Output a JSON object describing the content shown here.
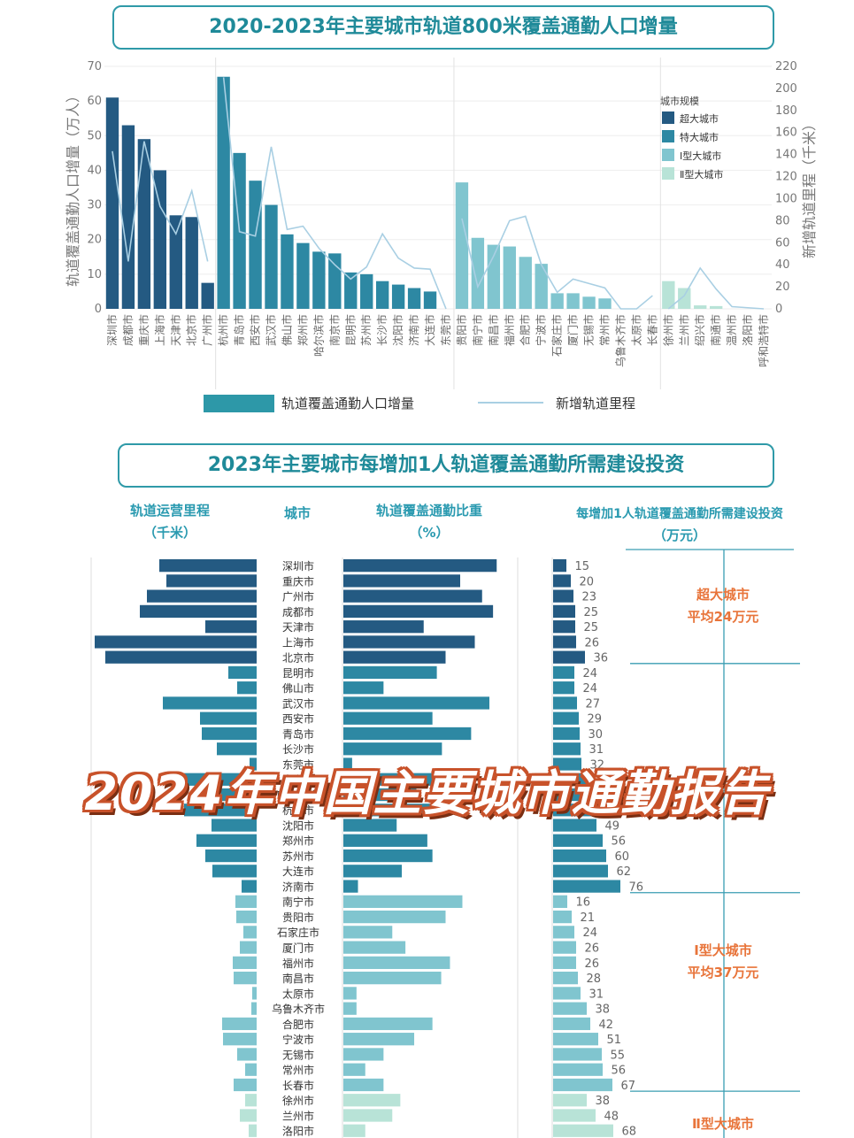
{
  "chart_data": [
    {
      "type": "bar",
      "title": "2020-2023年主要城市轨道800米覆盖通勤人口增量",
      "ylabel": "轨道覆盖通勤人口增量（万人）",
      "y2label": "新增轨道里程（千米）",
      "ylim": [
        0,
        70
      ],
      "y2lim": [
        0,
        220
      ],
      "yticks": [
        0,
        10,
        20,
        30,
        40,
        50,
        60,
        70
      ],
      "y2ticks": [
        0,
        20,
        40,
        60,
        80,
        100,
        120,
        140,
        160,
        180,
        200,
        220
      ],
      "legend_title": "城市规模",
      "groups": [
        {
          "name": "超大城市",
          "color": "#245a82"
        },
        {
          "name": "特大城市",
          "color": "#2d88a3"
        },
        {
          "name": "Ⅰ型大城市",
          "color": "#80c5cf"
        },
        {
          "name": "Ⅱ型大城市",
          "color": "#b8e3d7"
        }
      ],
      "series_labels": {
        "bars": "轨道覆盖通勤人口增量",
        "line": "新增轨道里程"
      },
      "grid": true,
      "legend_position": "top-right",
      "cities": [
        {
          "name": "深圳市",
          "group": 0,
          "pop": 61,
          "km": 143
        },
        {
          "name": "成都市",
          "group": 0,
          "pop": 53,
          "km": 43
        },
        {
          "name": "重庆市",
          "group": 0,
          "pop": 49,
          "km": 152
        },
        {
          "name": "上海市",
          "group": 0,
          "pop": 40,
          "km": 93
        },
        {
          "name": "天津市",
          "group": 0,
          "pop": 27,
          "km": 68
        },
        {
          "name": "北京市",
          "group": 0,
          "pop": 26.5,
          "km": 107
        },
        {
          "name": "广州市",
          "group": 0,
          "pop": 7.5,
          "km": 43
        },
        {
          "name": "杭州市",
          "group": 1,
          "pop": 67,
          "km": 210
        },
        {
          "name": "青岛市",
          "group": 1,
          "pop": 45,
          "km": 70
        },
        {
          "name": "西安市",
          "group": 1,
          "pop": 37,
          "km": 66
        },
        {
          "name": "武汉市",
          "group": 1,
          "pop": 30,
          "km": 147
        },
        {
          "name": "佛山市",
          "group": 1,
          "pop": 21.5,
          "km": 72
        },
        {
          "name": "郑州市",
          "group": 1,
          "pop": 19,
          "km": 75
        },
        {
          "name": "哈尔滨市",
          "group": 1,
          "pop": 16.5,
          "km": 55
        },
        {
          "name": "南京市",
          "group": 1,
          "pop": 16,
          "km": 40
        },
        {
          "name": "昆明市",
          "group": 1,
          "pop": 10.5,
          "km": 27
        },
        {
          "name": "苏州市",
          "group": 1,
          "pop": 10,
          "km": 38
        },
        {
          "name": "长沙市",
          "group": 1,
          "pop": 8,
          "km": 68
        },
        {
          "name": "沈阳市",
          "group": 1,
          "pop": 7,
          "km": 46
        },
        {
          "name": "济南市",
          "group": 1,
          "pop": 6,
          "km": 37
        },
        {
          "name": "大连市",
          "group": 1,
          "pop": 5,
          "km": 36
        },
        {
          "name": "东莞市",
          "group": 1,
          "pop": 0,
          "km": 0
        },
        {
          "name": "贵阳市",
          "group": 2,
          "pop": 36.5,
          "km": 82
        },
        {
          "name": "南宁市",
          "group": 2,
          "pop": 20.5,
          "km": 20
        },
        {
          "name": "南昌市",
          "group": 2,
          "pop": 18.5,
          "km": 48
        },
        {
          "name": "福州市",
          "group": 2,
          "pop": 18,
          "km": 80
        },
        {
          "name": "合肥市",
          "group": 2,
          "pop": 15,
          "km": 84
        },
        {
          "name": "宁波市",
          "group": 2,
          "pop": 13,
          "km": 40
        },
        {
          "name": "石家庄市",
          "group": 2,
          "pop": 4.5,
          "km": 15
        },
        {
          "name": "厦门市",
          "group": 2,
          "pop": 4.5,
          "km": 27
        },
        {
          "name": "无锡市",
          "group": 2,
          "pop": 3.5,
          "km": 23
        },
        {
          "name": "常州市",
          "group": 2,
          "pop": 3,
          "km": 19
        },
        {
          "name": "乌鲁木齐市",
          "group": 2,
          "pop": 0,
          "km": 0
        },
        {
          "name": "太原市",
          "group": 2,
          "pop": 0,
          "km": 0
        },
        {
          "name": "长春市",
          "group": 2,
          "pop": 0,
          "km": 12
        },
        {
          "name": "徐州市",
          "group": 3,
          "pop": 8,
          "km": 0
        },
        {
          "name": "兰州市",
          "group": 3,
          "pop": 6,
          "km": 12
        },
        {
          "name": "绍兴市",
          "group": 3,
          "pop": 1,
          "km": 37
        },
        {
          "name": "南通市",
          "group": 3,
          "pop": 0.8,
          "km": 18
        },
        {
          "name": "温州市",
          "group": 3,
          "pop": 0,
          "km": 2
        },
        {
          "name": "洛阳市",
          "group": 3,
          "pop": 0,
          "km": 1
        },
        {
          "name": "呼和浩特市",
          "group": 3,
          "pop": 0,
          "km": 0
        }
      ]
    },
    {
      "type": "bar",
      "title": "2023年主要城市每增加1人轨道覆盖通勤所需建设投资",
      "columns": {
        "mileage": [
          "轨道运营里程",
          "（千米）"
        ],
        "city": "城市",
        "ratio": [
          "轨道覆盖通勤比重",
          "（%）"
        ],
        "invest": [
          "每增加1人轨道覆盖通勤所需建设投资",
          "（万元）"
        ]
      },
      "group_labels": [
        {
          "name": "超大城市",
          "avg": "平均24万元"
        },
        {
          "name": "特大城市",
          "avg": ""
        },
        {
          "name": "Ⅰ型大城市",
          "avg": "平均37万元"
        },
        {
          "name": "Ⅱ型大城市",
          "avg": ""
        }
      ],
      "rows": [
        {
          "city": "深圳市",
          "group": 0,
          "mileage": 110,
          "ratio": 21,
          "invest": 15
        },
        {
          "city": "重庆市",
          "group": 0,
          "mileage": 102,
          "ratio": 16,
          "invest": 20
        },
        {
          "city": "广州市",
          "group": 0,
          "mileage": 124,
          "ratio": 19,
          "invest": 23
        },
        {
          "city": "成都市",
          "group": 0,
          "mileage": 132,
          "ratio": 20.5,
          "invest": 25
        },
        {
          "city": "天津市",
          "group": 0,
          "mileage": 58,
          "ratio": 11,
          "invest": 25
        },
        {
          "city": "上海市",
          "group": 0,
          "mileage": 183,
          "ratio": 18,
          "invest": 26
        },
        {
          "city": "北京市",
          "group": 0,
          "mileage": 171,
          "ratio": 14,
          "invest": 36
        },
        {
          "city": "昆明市",
          "group": 1,
          "mileage": 32,
          "ratio": 12.8,
          "invest": 24
        },
        {
          "city": "佛山市",
          "group": 1,
          "mileage": 22,
          "ratio": 5.5,
          "invest": 24
        },
        {
          "city": "武汉市",
          "group": 1,
          "mileage": 106,
          "ratio": 20,
          "invest": 27
        },
        {
          "city": "西安市",
          "group": 1,
          "mileage": 64,
          "ratio": 12.2,
          "invest": 29
        },
        {
          "city": "青岛市",
          "group": 1,
          "mileage": 62,
          "ratio": 17.5,
          "invest": 30
        },
        {
          "city": "长沙市",
          "group": 1,
          "mileage": 45,
          "ratio": 13.5,
          "invest": 31
        },
        {
          "city": "东莞市",
          "group": 1,
          "mileage": 8,
          "ratio": 1.2,
          "invest": 32
        },
        {
          "city": "南京市",
          "group": 1,
          "mileage": 88,
          "ratio": 14.5,
          "invest": 39
        },
        {
          "city": "哈尔滨市",
          "group": 1,
          "mileage": 40,
          "ratio": 10,
          "invest": 44
        },
        {
          "city": "杭州市",
          "group": 1,
          "mileage": 82,
          "ratio": 13,
          "invest": 47
        },
        {
          "city": "沈阳市",
          "group": 1,
          "mileage": 51,
          "ratio": 7.3,
          "invest": 49
        },
        {
          "city": "郑州市",
          "group": 1,
          "mileage": 68,
          "ratio": 11.5,
          "invest": 56
        },
        {
          "city": "苏州市",
          "group": 1,
          "mileage": 58,
          "ratio": 12.2,
          "invest": 60
        },
        {
          "city": "大连市",
          "group": 1,
          "mileage": 50,
          "ratio": 8,
          "invest": 62
        },
        {
          "city": "济南市",
          "group": 1,
          "mileage": 17,
          "ratio": 2,
          "invest": 76
        },
        {
          "city": "南宁市",
          "group": 2,
          "mileage": 24,
          "ratio": 16.3,
          "invest": 16
        },
        {
          "city": "贵阳市",
          "group": 2,
          "mileage": 23,
          "ratio": 14,
          "invest": 21
        },
        {
          "city": "石家庄市",
          "group": 2,
          "mileage": 15,
          "ratio": 6.7,
          "invest": 24
        },
        {
          "city": "厦门市",
          "group": 2,
          "mileage": 19,
          "ratio": 8.5,
          "invest": 26
        },
        {
          "city": "福州市",
          "group": 2,
          "mileage": 27,
          "ratio": 14.6,
          "invest": 26
        },
        {
          "city": "南昌市",
          "group": 2,
          "mileage": 26,
          "ratio": 13.4,
          "invest": 28
        },
        {
          "city": "太原市",
          "group": 2,
          "mileage": 5,
          "ratio": 1.8,
          "invest": 31
        },
        {
          "city": "乌鲁木齐市",
          "group": 2,
          "mileage": 6,
          "ratio": 1.8,
          "invest": 38
        },
        {
          "city": "合肥市",
          "group": 2,
          "mileage": 39,
          "ratio": 12.2,
          "invest": 42
        },
        {
          "city": "宁波市",
          "group": 2,
          "mileage": 38,
          "ratio": 9.7,
          "invest": 51
        },
        {
          "city": "无锡市",
          "group": 2,
          "mileage": 22,
          "ratio": 5.5,
          "invest": 55
        },
        {
          "city": "常州市",
          "group": 2,
          "mileage": 13,
          "ratio": 3,
          "invest": 56
        },
        {
          "city": "长春市",
          "group": 2,
          "mileage": 26,
          "ratio": 5.5,
          "invest": 67
        },
        {
          "city": "徐州市",
          "group": 3,
          "mileage": 13,
          "ratio": 7.8,
          "invest": 38
        },
        {
          "city": "兰州市",
          "group": 3,
          "mileage": 19,
          "ratio": 6.7,
          "invest": 48
        },
        {
          "city": "洛阳市",
          "group": 3,
          "mileage": 9,
          "ratio": 3,
          "invest": 68
        }
      ]
    }
  ],
  "overlay_title": "2024年中国主要城市通勤报告"
}
